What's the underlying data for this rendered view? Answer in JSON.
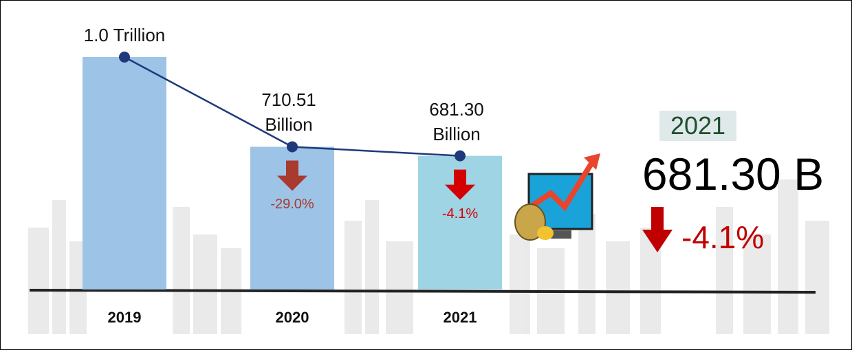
{
  "chart_data": {
    "type": "bar-line",
    "categories": [
      "2019",
      "2020",
      "2021"
    ],
    "values": [
      1000,
      710.51,
      681.3
    ],
    "value_labels": [
      "1.0 Trillion",
      "710.51 Billion",
      "681.30 Billion"
    ],
    "bar_colors": [
      "#9dc3e6",
      "#9dc3e6",
      "#9fd4e4"
    ],
    "line_color": "#1f3a7a",
    "ylim": [
      250,
      1000
    ],
    "changes": [
      null,
      -29.0,
      -4.1
    ],
    "change_labels": [
      null,
      "-29.0%",
      "-4.1%"
    ],
    "change_colors": [
      null,
      "#a93a2e",
      "#d40000"
    ],
    "highlight": {
      "year": "2021",
      "value": "681.30 B",
      "change": "-4.1%",
      "change_value": -4.1
    }
  }
}
